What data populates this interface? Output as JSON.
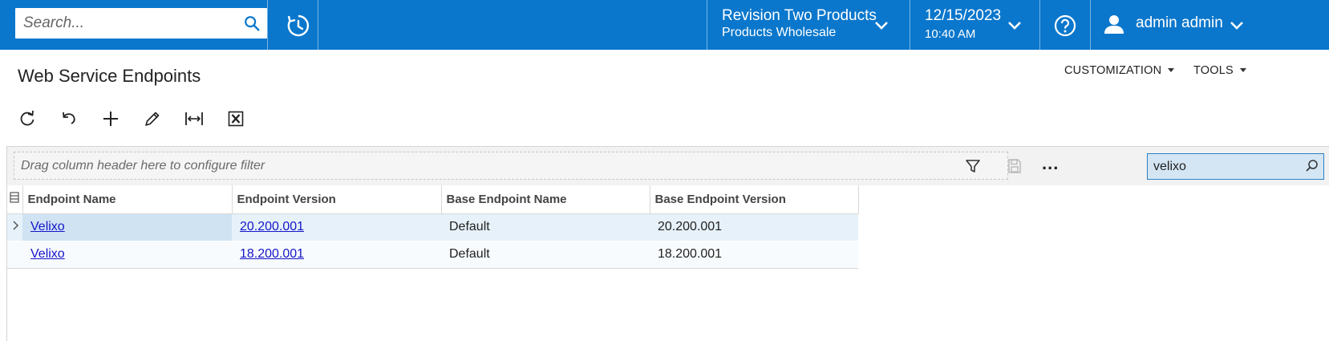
{
  "topbar": {
    "search_placeholder": "Search...",
    "icons": {
      "search": "search-icon",
      "history": "history-icon",
      "help": "help-icon",
      "user": "user-icon",
      "chevron": "chevron-down-icon"
    },
    "company": {
      "name": "Revision Two Products",
      "branch": "Products Wholesale"
    },
    "datetime": {
      "date": "12/15/2023",
      "time": "10:40 AM"
    },
    "user": {
      "name": "admin admin"
    },
    "colors": {
      "background": "#0a77cc",
      "text": "#ffffff"
    }
  },
  "page": {
    "title": "Web Service Endpoints",
    "menus": [
      {
        "label": "CUSTOMIZATION"
      },
      {
        "label": "TOOLS"
      }
    ]
  },
  "toolbar": {
    "buttons": [
      {
        "name": "refresh",
        "icon": "refresh-icon"
      },
      {
        "name": "undo",
        "icon": "undo-icon"
      },
      {
        "name": "add",
        "icon": "plus-icon"
      },
      {
        "name": "edit",
        "icon": "pencil-icon"
      },
      {
        "name": "fit-columns",
        "icon": "fit-width-icon"
      },
      {
        "name": "export-excel",
        "icon": "excel-icon"
      }
    ]
  },
  "grid": {
    "filter_placeholder": "Drag column header here to configure filter",
    "search_value": "velixo",
    "more_label": "...",
    "columns": [
      "Endpoint Name",
      "Endpoint Version",
      "Base Endpoint Name",
      "Base Endpoint Version"
    ],
    "rows": [
      {
        "endpoint_name": "Velixo",
        "endpoint_version": "20.200.001",
        "base_endpoint_name": "Default",
        "base_endpoint_version": "20.200.001",
        "active": true
      },
      {
        "endpoint_name": "Velixo",
        "endpoint_version": "18.200.001",
        "base_endpoint_name": "Default",
        "base_endpoint_version": "18.200.001",
        "active": false
      }
    ],
    "colors": {
      "link": "#1515c8",
      "active_row": "#e6f1f9",
      "search_bg": "#d4e6f4"
    }
  }
}
